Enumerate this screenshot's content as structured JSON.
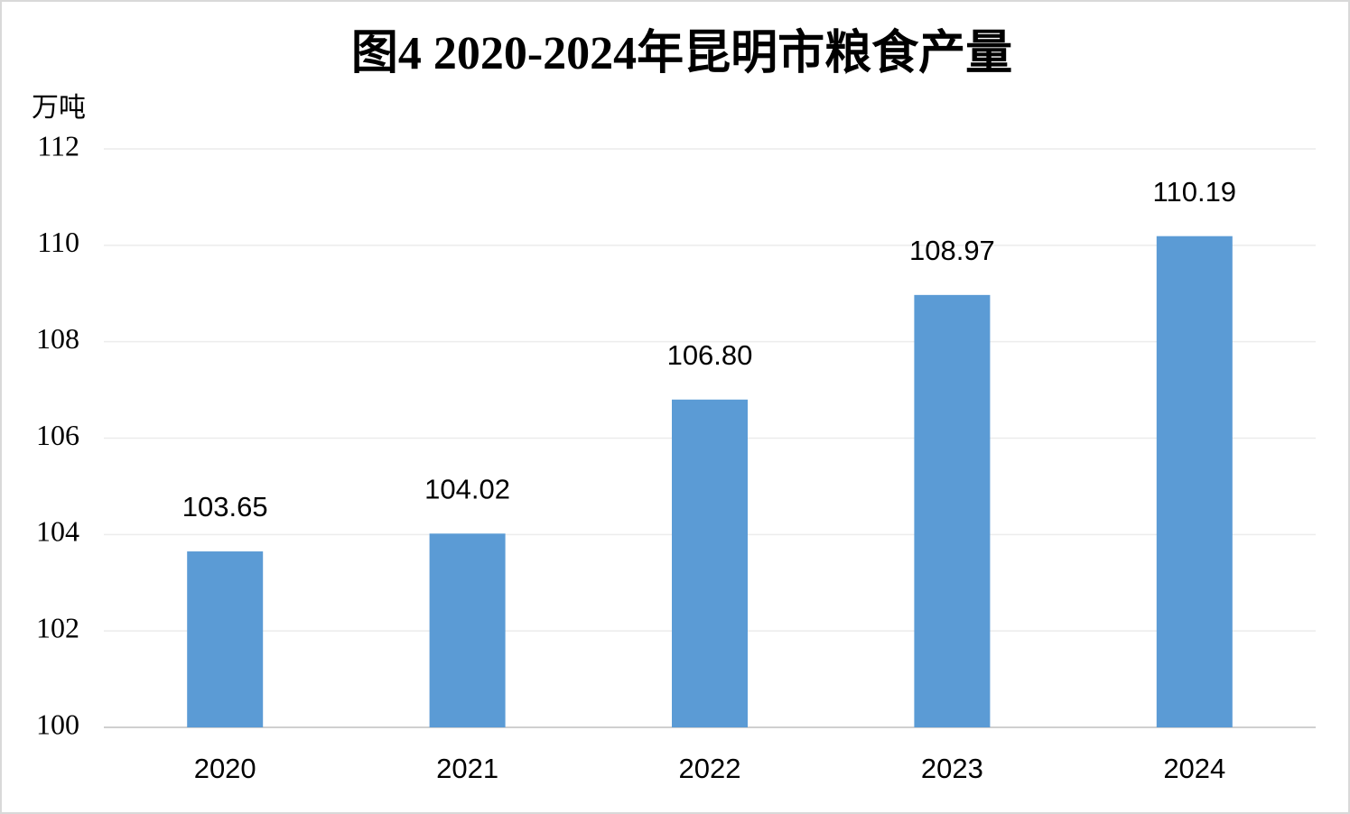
{
  "chart_data": {
    "type": "bar",
    "title": "图4 2020-2024年昆明市粮食产量",
    "y_label": "万吨",
    "categories": [
      "2020",
      "2021",
      "2022",
      "2023",
      "2024"
    ],
    "values": [
      103.65,
      104.02,
      106.8,
      108.97,
      110.19
    ],
    "value_labels": [
      "103.65",
      "104.02",
      "106.80",
      "108.97",
      "110.19"
    ],
    "color": "#5b9bd5",
    "ylim": [
      100,
      112
    ],
    "yticks": [
      100,
      102,
      104,
      106,
      108,
      110,
      112
    ],
    "grid": true
  }
}
